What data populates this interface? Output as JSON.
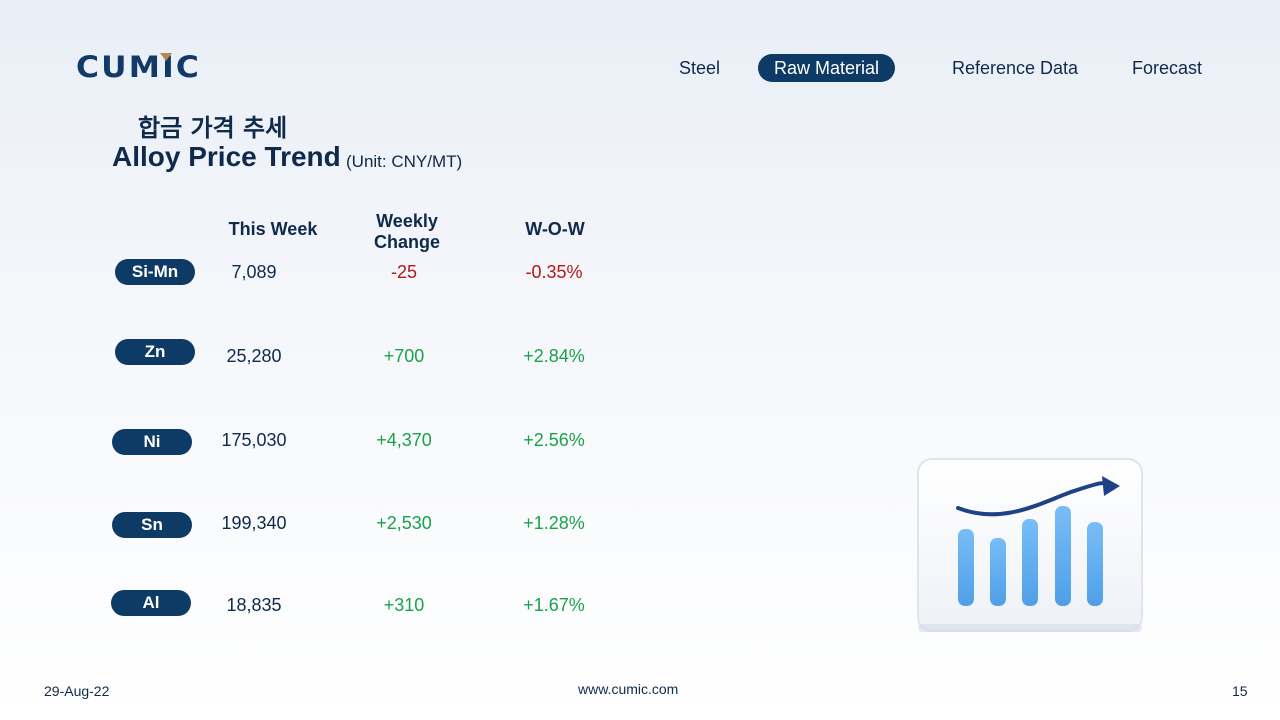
{
  "brand": {
    "logo_text": "CUMIC"
  },
  "nav": {
    "items": [
      {
        "label": "Steel"
      },
      {
        "label": "Raw Material",
        "active": true
      },
      {
        "label": "Reference Data"
      },
      {
        "label": "Forecast"
      }
    ]
  },
  "header": {
    "title_ko": "합금 가격 추세",
    "title_en": "Alloy Price Trend",
    "unit": "(Unit: CNY/MT)"
  },
  "table": {
    "columns": [
      "This Week",
      "Weekly Change",
      "W-O-W"
    ],
    "rows": [
      {
        "name": "Si-Mn",
        "this_week": "7,089",
        "change": "-25",
        "wow": "-0.35%",
        "trend": "down"
      },
      {
        "name": "Zn",
        "this_week": "25,280",
        "change": "+700",
        "wow": "+2.84%",
        "trend": "up"
      },
      {
        "name": "Ni",
        "this_week": "175,030",
        "change": "+4,370",
        "wow": "+2.56%",
        "trend": "up"
      },
      {
        "name": "Sn",
        "this_week": "199,340",
        "change": "+2,530",
        "wow": "+1.28%",
        "trend": "up"
      },
      {
        "name": "Al",
        "this_week": "18,835",
        "change": "+310",
        "wow": "+1.67%",
        "trend": "up"
      }
    ]
  },
  "colors": {
    "navy": "#0d3b66",
    "negative": "#b2181b",
    "positive": "#1aa24a",
    "bar": "#5aaaf0"
  },
  "illustration": {
    "icon": "growth-chart-icon"
  },
  "footer": {
    "date": "29-Aug-22",
    "website": "www.cumic.com",
    "page": "15"
  }
}
